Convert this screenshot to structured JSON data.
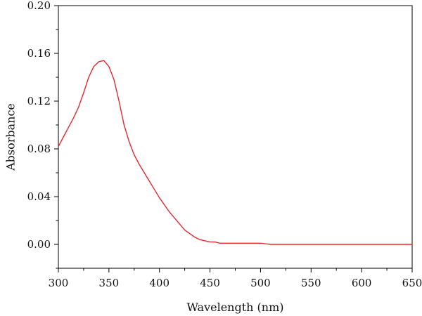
{
  "chart_data": {
    "type": "line",
    "title": "",
    "xlabel": "Wavelength (nm)",
    "ylabel": "Absorbance",
    "xlim": [
      300,
      650
    ],
    "ylim": [
      -0.02,
      0.2
    ],
    "xticks": [
      300,
      350,
      400,
      450,
      500,
      550,
      600,
      650
    ],
    "xtick_labels": [
      "300",
      "350",
      "400",
      "450",
      "500",
      "550",
      "600",
      "650"
    ],
    "yticks": [
      0.0,
      0.04,
      0.08,
      0.12,
      0.16,
      0.2
    ],
    "ytick_labels": [
      "0.00",
      "0.04",
      "0.08",
      "0.12",
      "0.16",
      "0.20"
    ],
    "grid": false,
    "legend": false,
    "series": [
      {
        "color": "#e8262a",
        "x": [
          300,
          305,
          310,
          315,
          320,
          325,
          330,
          335,
          340,
          345,
          350,
          355,
          360,
          365,
          370,
          375,
          380,
          385,
          390,
          395,
          400,
          405,
          410,
          415,
          420,
          425,
          430,
          435,
          440,
          445,
          450,
          455,
          460,
          470,
          480,
          490,
          500,
          510,
          520,
          550,
          600,
          650
        ],
        "y": [
          0.082,
          0.09,
          0.098,
          0.106,
          0.115,
          0.127,
          0.14,
          0.149,
          0.153,
          0.154,
          0.149,
          0.138,
          0.12,
          0.1,
          0.086,
          0.075,
          0.067,
          0.06,
          0.053,
          0.046,
          0.039,
          0.033,
          0.027,
          0.022,
          0.017,
          0.012,
          0.009,
          0.006,
          0.004,
          0.003,
          0.002,
          0.002,
          0.001,
          0.001,
          0.001,
          0.001,
          0.001,
          0.0,
          0.0,
          0.0,
          0.0,
          0.0
        ]
      }
    ]
  }
}
